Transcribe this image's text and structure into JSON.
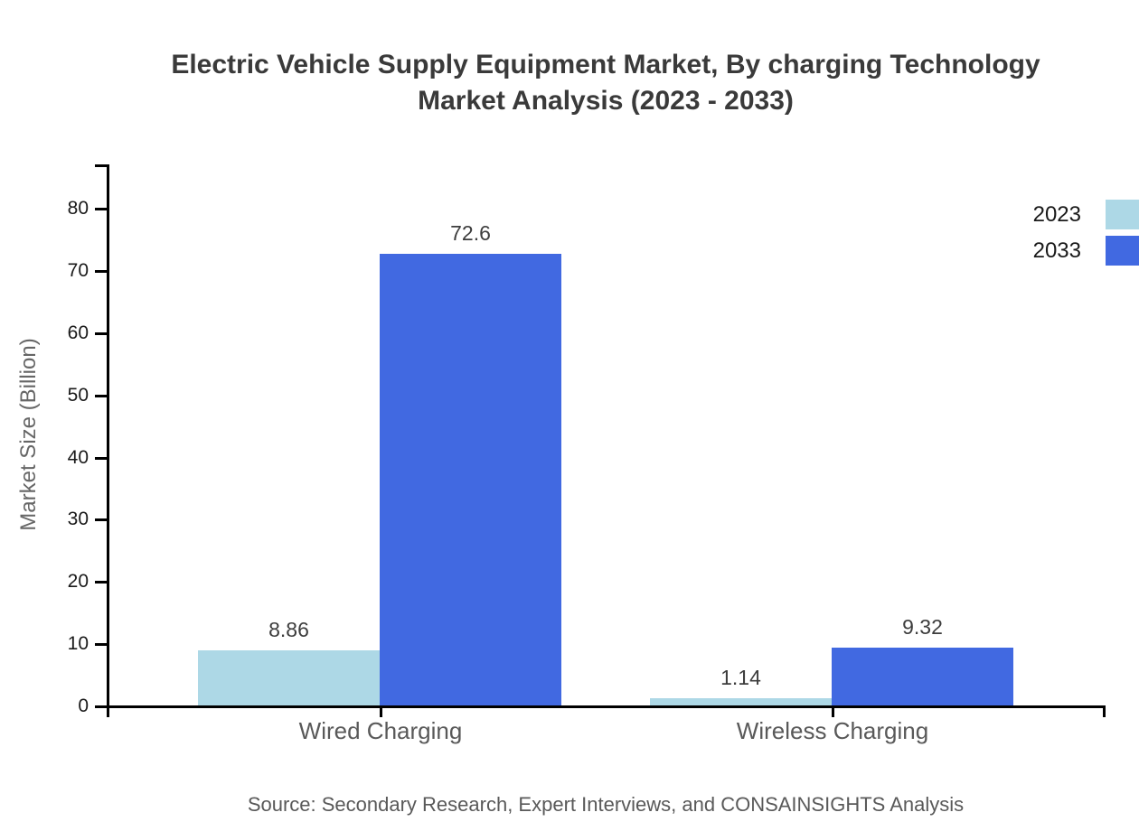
{
  "title": {
    "line1": "Electric Vehicle Supply Equipment Market, By charging Technology",
    "line2": "Market Analysis (2023 - 2033)"
  },
  "source": "Source: Secondary Research, Expert Interviews, and CONSAINSIGHTS Analysis",
  "colors": {
    "series_2023": "#ADD8E6",
    "series_2033": "#4169E1",
    "axis": "#000000",
    "title_text": "#3a3a3a",
    "category_text": "#595959",
    "value_text": "#3d3d3d",
    "tick_text": "#1a1a1a",
    "source_text": "#595959"
  },
  "chart_data": {
    "type": "bar",
    "title": "Electric Vehicle Supply Equipment Market, By charging Technology Market Analysis (2023 - 2033)",
    "categories": [
      "Wired Charging",
      "Wireless Charging"
    ],
    "series": [
      {
        "name": "2023",
        "color": "#ADD8E6",
        "values": [
          8.86,
          1.14
        ],
        "labels": [
          "8.86",
          "1.14"
        ]
      },
      {
        "name": "2033",
        "color": "#4169E1",
        "values": [
          72.6,
          9.32
        ],
        "labels": [
          "72.6",
          "9.32"
        ]
      }
    ],
    "xlabel": "",
    "ylabel": "Market Size (Billion)",
    "yticks": [
      0,
      10,
      20,
      30,
      40,
      50,
      60,
      70,
      80
    ],
    "ylim": [
      0,
      87
    ],
    "grid": false,
    "legend_position": "top-right",
    "legend_entries": [
      "2023",
      "2033"
    ]
  }
}
